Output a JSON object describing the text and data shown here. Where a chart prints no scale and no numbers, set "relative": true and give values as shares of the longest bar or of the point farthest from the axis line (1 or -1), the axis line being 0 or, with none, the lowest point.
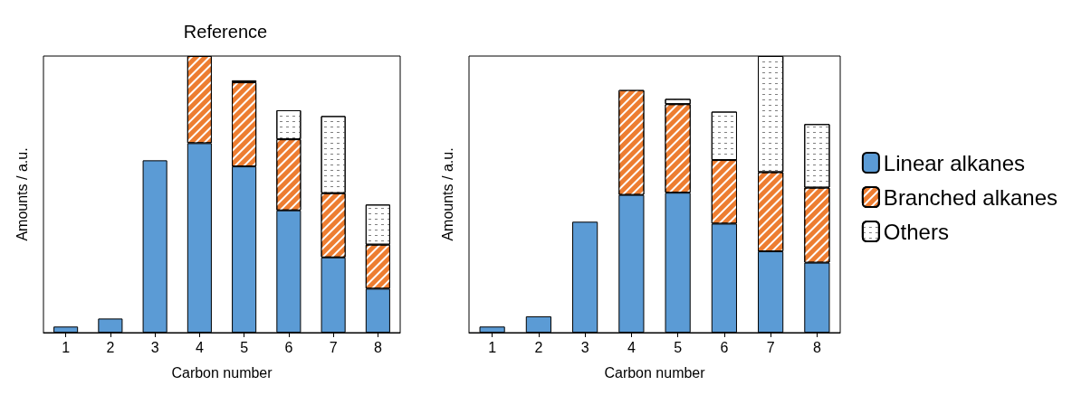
{
  "chart_data": [
    {
      "type": "bar",
      "title": "Reference",
      "xlabel": "Carbon number",
      "ylabel": "Amounts / a.u.",
      "relative": true,
      "stacked": true,
      "legend": false,
      "categories": [
        "1",
        "2",
        "3",
        "4",
        "5",
        "6",
        "7",
        "8"
      ],
      "series": [
        {
          "color": "#5b9bd5",
          "values": [
            0.022,
            0.051,
            0.623,
            0.685,
            0.601,
            0.442,
            0.272,
            0.159
          ]
        },
        {
          "color": "#ed7d31",
          "values": [
            null,
            null,
            null,
            0.315,
            0.304,
            0.257,
            0.232,
            0.159
          ]
        },
        {
          "color": "#ffffff",
          "values": [
            null,
            null,
            null,
            null,
            0.007,
            0.105,
            0.279,
            0.145
          ]
        }
      ]
    },
    {
      "type": "bar",
      "xlabel": "Carbon number",
      "ylabel": "Amounts / a.u.",
      "relative": true,
      "stacked": true,
      "legend": "right",
      "categories": [
        "1",
        "2",
        "3",
        "4",
        "5",
        "6",
        "7",
        "8"
      ],
      "series": [
        {
          "name": "Linear alkanes",
          "color": "#5b9bd5",
          "values": [
            0.022,
            0.059,
            0.401,
            0.498,
            0.506,
            0.394,
            0.294,
            0.253
          ]
        },
        {
          "name": "Branched alkanes",
          "color": "#ed7d31",
          "values": [
            null,
            null,
            null,
            0.379,
            0.32,
            0.23,
            0.286,
            0.271
          ]
        },
        {
          "name": "Others",
          "color": "#ffffff",
          "values": [
            null,
            null,
            null,
            null,
            0.019,
            0.175,
            0.42,
            0.23
          ]
        }
      ]
    }
  ]
}
